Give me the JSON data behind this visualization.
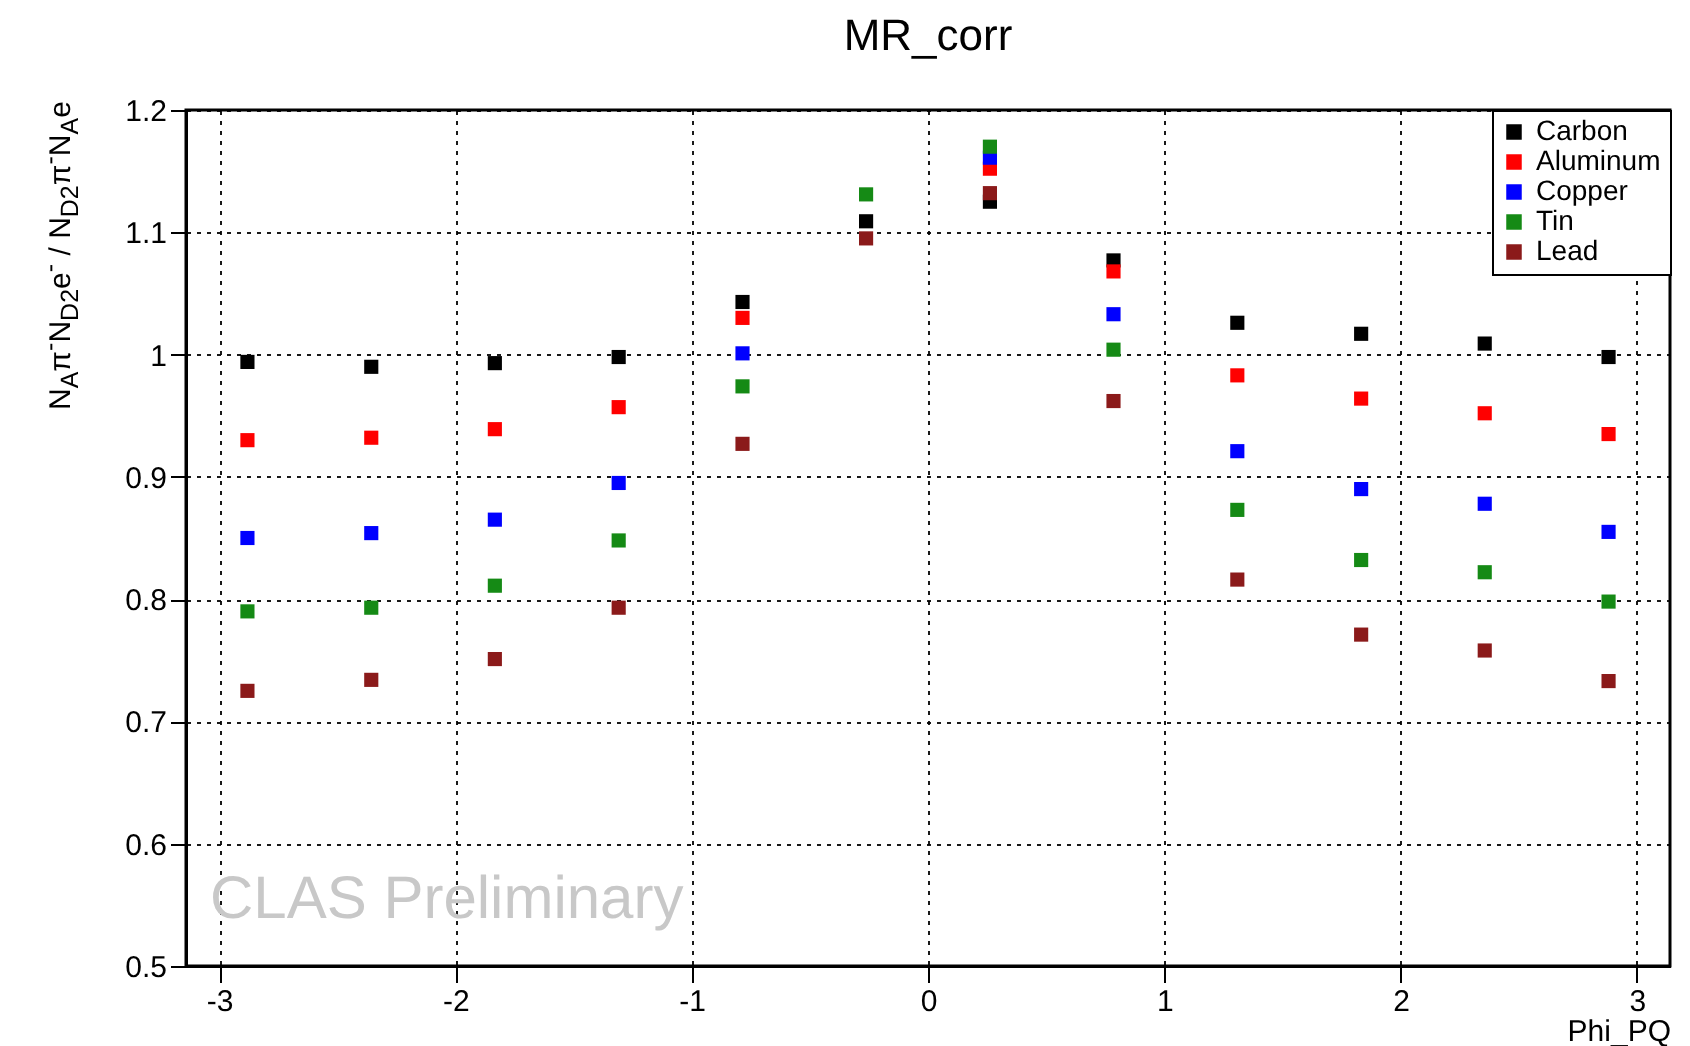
{
  "chart_data": {
    "type": "scatter",
    "title": "MR_corr",
    "xlabel": "Phi_PQ",
    "ylabel": "N$_{A}$π$^{-}$N$_{D2}$e$^{-}$ / N$_{D2}$π$^{-}$N$_{A}$e",
    "x": [
      -2.88,
      -2.356,
      -1.833,
      -1.309,
      -0.785,
      -0.262,
      0.262,
      0.785,
      1.309,
      1.833,
      2.356,
      2.88
    ],
    "series": [
      {
        "name": "Carbon",
        "color": "#000000",
        "values": [
          0.994,
          0.99,
          0.993,
          0.998,
          1.043,
          1.109,
          1.125,
          1.077,
          1.026,
          1.017,
          1.009,
          0.998
        ]
      },
      {
        "name": "Aluminum",
        "color": "#ff0000",
        "values": [
          0.93,
          0.932,
          0.939,
          0.957,
          1.03,
          null,
          1.152,
          1.068,
          0.983,
          0.964,
          0.952,
          0.935
        ]
      },
      {
        "name": "Copper",
        "color": "#0000ff",
        "values": [
          0.85,
          0.854,
          0.865,
          0.895,
          1.001,
          null,
          1.161,
          1.033,
          0.921,
          0.89,
          0.878,
          0.855
        ]
      },
      {
        "name": "Tin",
        "color": "#158a15",
        "values": [
          0.79,
          0.793,
          0.811,
          0.848,
          0.974,
          1.131,
          1.17,
          1.004,
          0.873,
          0.832,
          0.822,
          0.798
        ]
      },
      {
        "name": "Lead",
        "color": "#8b1a1a",
        "values": [
          0.725,
          0.734,
          0.751,
          0.793,
          0.927,
          1.095,
          1.132,
          0.962,
          0.816,
          0.771,
          0.758,
          0.733
        ]
      }
    ],
    "xlim": [
      -3.14,
      3.14
    ],
    "ylim": [
      0.5,
      1.2
    ],
    "xticks": [
      -3,
      -2,
      -1,
      0,
      1,
      2,
      3
    ],
    "yticks": [
      0.5,
      0.6,
      0.7,
      0.8,
      0.9,
      1,
      1.1,
      1.2
    ],
    "grid": true,
    "legend": "top right",
    "marker": "square",
    "annotations": [
      "CLAS Preliminary"
    ]
  }
}
